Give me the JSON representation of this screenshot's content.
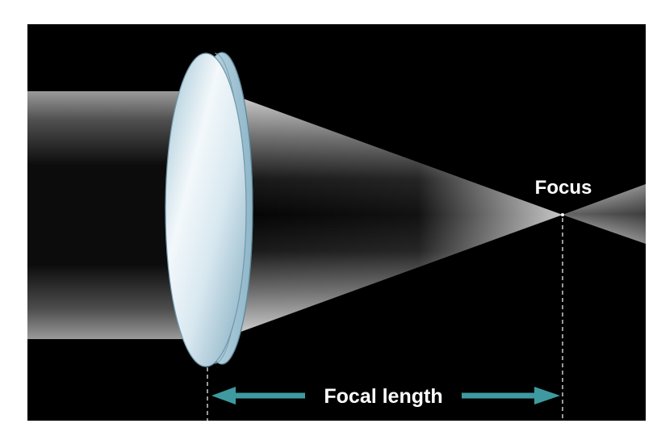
{
  "diagram": {
    "labels": {
      "focus": "Focus",
      "focal_length": "Focal length"
    },
    "colors": {
      "background": "#000000",
      "page": "#ffffff",
      "arrow": "#3e9aa0",
      "lens_edge": "#a9cbd8",
      "lens_face": "#e6f1f6"
    }
  }
}
